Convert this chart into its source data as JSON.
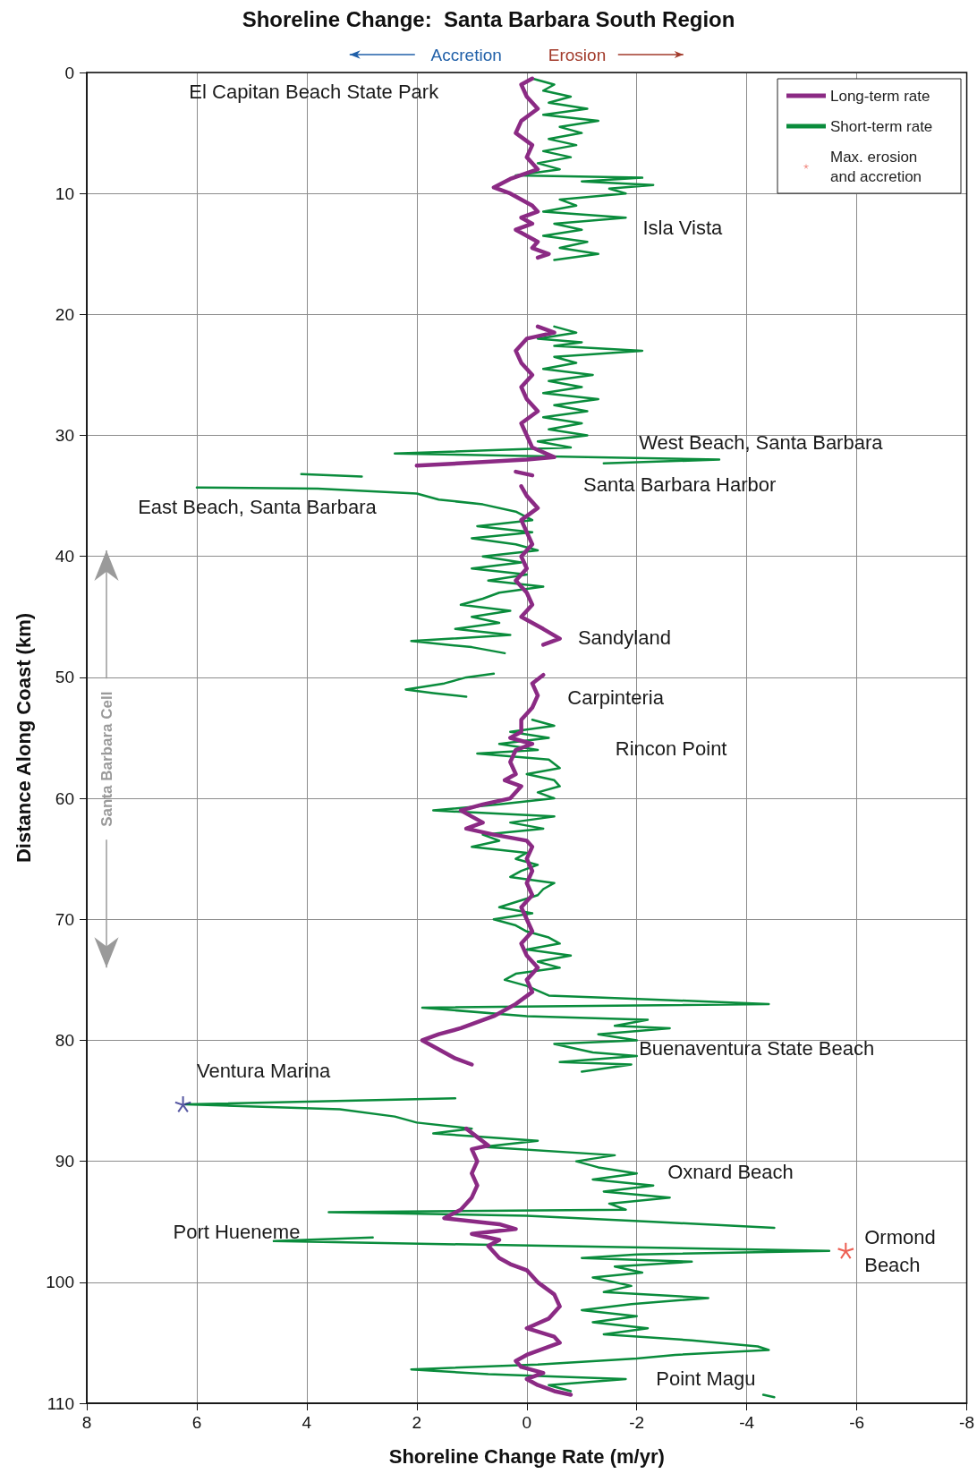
{
  "chart_data": {
    "type": "line",
    "title": "Shoreline Change:  Santa Barbara South Region",
    "xlabel": "Shoreline Change Rate (m/yr)",
    "ylabel": "Distance Along Coast (km)",
    "xlim": [
      8,
      -8
    ],
    "xticks": [
      8,
      6,
      4,
      2,
      0,
      -2,
      -4,
      -6,
      -8
    ],
    "ylim": [
      110,
      0
    ],
    "yticks": [
      0,
      10,
      20,
      30,
      40,
      50,
      60,
      70,
      80,
      90,
      100,
      110
    ],
    "grid": true,
    "legend": "top right",
    "marker": "none",
    "series": [
      {
        "name": "Long-term rate",
        "color": "#8b2a84",
        "x": [
          -0.1,
          0.1,
          0.0,
          -0.2,
          0.1,
          0.2,
          -0.1,
          0.0,
          -0.2,
          0.3,
          0.6,
          0.3,
          0.1,
          -0.1,
          -0.2,
          0.1,
          -0.1,
          0.2,
          0.0,
          -0.2,
          -0.1,
          -0.4,
          -0.2,
          null,
          -0.2,
          -0.5,
          0.0,
          0.2,
          0.1,
          -0.1,
          0.1,
          0.0,
          -0.2,
          0.1,
          0.0,
          -0.1,
          -0.5,
          0.0,
          2.0,
          null,
          0.2,
          -0.1,
          null,
          0.1,
          0.0,
          -0.2,
          0.1,
          0.0,
          -0.1,
          0.1,
          0.0,
          0.2,
          0.0,
          -0.1,
          0.1,
          -0.3,
          -0.6,
          -0.3,
          null,
          -0.3,
          -0.1,
          -0.2,
          -0.1,
          0.1,
          0.1,
          0.3,
          -0.1,
          0.2,
          0.3,
          0.2,
          0.4,
          0.1,
          0.3,
          0.8,
          1.2,
          0.8,
          1.1,
          0.6,
          0.0,
          -0.1,
          0.0,
          -0.1,
          0.0,
          -0.1,
          0.1,
          0.0,
          -0.1,
          0.1,
          0.0,
          -0.2,
          0.0,
          -0.1,
          0.2,
          0.6,
          1.2,
          1.6,
          1.9,
          1.7,
          1.5,
          1.3,
          1.0,
          null,
          1.1,
          0.9,
          0.7,
          1.0,
          0.9,
          1.0,
          0.9,
          1.0,
          1.2,
          1.5,
          0.5,
          0.2,
          1.0,
          0.5,
          0.7,
          0.6,
          0.5,
          0.3,
          0.0,
          -0.2,
          -0.5,
          -0.6,
          -0.4,
          0.0,
          -0.5,
          -0.6,
          -0.3,
          0.0,
          0.2,
          0.1,
          -0.3,
          0.0,
          -0.2,
          -0.5,
          -0.8
        ],
        "values": [
          0.5,
          1,
          2,
          3,
          4,
          5,
          6,
          7,
          8,
          8.8,
          9.5,
          10,
          10.5,
          11,
          11.5,
          12,
          12.5,
          13,
          13.5,
          14,
          14.5,
          15,
          15.3,
          null,
          21,
          21.5,
          22,
          23,
          24,
          25,
          26,
          27,
          28,
          29,
          30,
          31,
          31.8,
          32,
          32.5,
          null,
          33,
          33.3,
          null,
          34.2,
          35,
          36,
          37,
          38,
          39,
          40,
          41,
          42,
          43,
          44,
          45,
          46,
          46.8,
          47.3,
          null,
          49.8,
          50.5,
          51.5,
          52.5,
          53.5,
          54.5,
          55,
          55.5,
          56,
          57,
          58,
          58.5,
          59,
          60,
          60.5,
          61,
          62,
          62.5,
          63,
          63.5,
          64,
          65,
          66,
          67,
          68,
          69,
          70,
          71,
          72,
          73,
          74,
          75,
          76,
          77,
          78,
          79,
          79.5,
          80,
          80.5,
          81,
          81.5,
          82,
          null,
          87.3,
          88,
          88.7,
          89,
          90,
          91,
          92,
          93,
          94,
          94.7,
          95.2,
          95.6,
          96,
          96.5,
          97,
          97.5,
          98,
          98.5,
          99,
          100,
          101,
          102,
          103,
          103.8,
          104.5,
          105,
          105.5,
          106,
          106.5,
          107,
          107.5,
          108,
          108.5,
          109,
          109.3
        ]
      },
      {
        "name": "Short-term rate",
        "color": "#0a8c3c",
        "x": [
          -0.1,
          -0.5,
          -0.3,
          -0.8,
          -0.4,
          -1.1,
          -0.3,
          -1.3,
          -0.6,
          -1.0,
          -0.4,
          -0.9,
          -0.3,
          -0.8,
          -0.2,
          -0.6,
          0.2,
          -2.1,
          -1.0,
          -2.3,
          -1.5,
          -1.8,
          -0.6,
          -0.9,
          -0.3,
          -1.8,
          -0.5,
          -1.0,
          -0.3,
          -1.1,
          -0.6,
          -1.3,
          -0.5,
          null,
          -0.5,
          -0.9,
          -0.2,
          -1.0,
          -0.5,
          -2.1,
          -0.5,
          -0.9,
          -0.3,
          -1.2,
          -0.4,
          -1.0,
          -0.3,
          -1.3,
          -0.5,
          -1.1,
          -0.3,
          -1.0,
          -0.4,
          -1.1,
          -0.2,
          -0.8,
          2.4,
          -3.5,
          -1.4,
          null,
          4.1,
          3.0,
          null,
          6.0,
          3.8,
          2.0,
          1.6,
          0.8,
          0.2,
          -0.1,
          0.9,
          -0.1,
          1.0,
          0.2,
          -0.2,
          0.8,
          0.1,
          1.0,
          0.0,
          0.7,
          -0.3,
          0.5,
          0.8,
          1.2,
          0.3,
          1.0,
          0.5,
          1.3,
          0.3,
          2.1,
          1.0,
          0.4,
          null,
          0.6,
          1.1,
          1.5,
          2.2,
          1.7,
          1.1,
          null,
          -0.1,
          -0.5,
          0.3,
          -0.4,
          0.5,
          -0.2,
          0.9,
          -0.4,
          -0.6,
          0.0,
          -0.5,
          -0.6,
          -0.2,
          -0.5,
          0.5,
          1.7,
          -0.5,
          0.3,
          -0.3,
          0.8,
          0.5,
          1.0,
          0.0,
          0.2,
          -0.2,
          0.1,
          0.3,
          -0.5,
          -0.3,
          -0.2,
          0.5,
          -0.1,
          0.6,
          0.2,
          0.0,
          -0.4,
          -0.6,
          0.0,
          -0.8,
          -0.2,
          -0.6,
          0.2,
          0.4,
          0.0,
          -0.4,
          -1.6,
          -4.4,
          1.9,
          0.0,
          -2.2,
          -1.6,
          -2.6,
          -1.3,
          -2.0,
          -0.5,
          -1.2,
          -2.0,
          -0.6,
          -1.9,
          -1.0,
          null,
          1.3,
          6.2,
          3.4,
          2.4,
          2.0,
          1.0,
          1.7,
          -0.2,
          0.8,
          -1.6,
          -0.9,
          -1.3,
          -2.0,
          -1.2,
          -2.3,
          -1.4,
          -2.6,
          -1.5,
          -1.8,
          3.6,
          0.0,
          -2.3,
          -4.5,
          null,
          2.8,
          4.6,
          -5.5,
          -2.0,
          -1.0,
          -3.0,
          -1.6,
          -2.1,
          -1.2,
          -1.9,
          -1.4,
          -3.3,
          -1.9,
          -1.0,
          -2.0,
          -1.2,
          -2.2,
          -1.4,
          -3.0,
          -4.2,
          -4.4,
          -2.7,
          -2.0,
          -0.2,
          2.1,
          0.7,
          -1.8,
          -0.4,
          -0.8,
          null,
          -4.3,
          -4.5
        ],
        "values": [
          0.5,
          1,
          1.5,
          2,
          2.5,
          3,
          3.5,
          4,
          4.5,
          5,
          5.5,
          6,
          6.5,
          7,
          7.5,
          8,
          8.5,
          8.7,
          9,
          9.3,
          9.6,
          10,
          10.5,
          11,
          11.5,
          12,
          12.5,
          13,
          13.5,
          14,
          14.5,
          15,
          15.5,
          null,
          21,
          21.5,
          22,
          22.3,
          22.6,
          23,
          23.5,
          24,
          24.5,
          25,
          25.5,
          26,
          26.5,
          27,
          27.5,
          28,
          28.5,
          29,
          29.5,
          30,
          30.5,
          31,
          31.5,
          32,
          32.3,
          null,
          33.2,
          33.4,
          null,
          34.3,
          34.4,
          34.8,
          35.3,
          35.7,
          36.3,
          37,
          37.5,
          38,
          38.5,
          39,
          39.5,
          40,
          40.5,
          41,
          41.5,
          42,
          42.5,
          43,
          43.5,
          44,
          44.5,
          45,
          45.5,
          46,
          46.5,
          47,
          47.5,
          48,
          null,
          49.7,
          50,
          50.5,
          51,
          51.3,
          51.6,
          null,
          53.5,
          54,
          54.5,
          55,
          55.5,
          56,
          56.3,
          56.8,
          57.5,
          58,
          58.5,
          59,
          59.5,
          60,
          60.5,
          61,
          61.5,
          62,
          62.5,
          63,
          63.5,
          64,
          64.5,
          65,
          65.5,
          66,
          66.5,
          67,
          67.5,
          68,
          69,
          69.5,
          70,
          70.5,
          71,
          71.5,
          72,
          72.5,
          73,
          73.5,
          74,
          74.5,
          75,
          75.5,
          76.3,
          76.5,
          77,
          77.3,
          78,
          78.3,
          78.8,
          79,
          79.5,
          80,
          80.3,
          81,
          81.3,
          81.8,
          82,
          82.6,
          null,
          84.8,
          85.3,
          85.7,
          86.3,
          86.8,
          87.3,
          87.7,
          88.3,
          88.8,
          89.5,
          90,
          90.5,
          91,
          91.5,
          92,
          92.5,
          93,
          93.5,
          94,
          94.2,
          94.5,
          95,
          95.5,
          null,
          96.3,
          96.6,
          97.4,
          97.7,
          98,
          98.3,
          98.7,
          99.2,
          99.6,
          100.3,
          100.8,
          101.3,
          101.8,
          102.3,
          102.8,
          103.3,
          103.8,
          104.3,
          104.8,
          105.3,
          105.6,
          106,
          106.3,
          106.8,
          107.2,
          107.6,
          108,
          108.5,
          109,
          null,
          109.3,
          109.5
        ]
      },
      {
        "name": "Max. erosion and accretion",
        "type": "scatter",
        "marker": "star",
        "colors": [
          "#e8392a",
          "#2e2f8c"
        ],
        "x": [
          -5.8,
          6.25
        ],
        "values": [
          97.4,
          85.3
        ]
      }
    ],
    "annotations": [
      "Accretion",
      "Erosion",
      "Santa Barbara Cell",
      "El Capitan Beach State Park",
      "Isla Vista",
      "West Beach, Santa Barbara",
      "Santa Barbara Harbor",
      "East Beach, Santa Barbara",
      "Sandyland",
      "Carpinteria",
      "Rincon Point",
      "Buenaventura State Beach",
      "Ventura Marina",
      "Oxnard Beach",
      "Port Hueneme",
      "Ormond Beach",
      "Point Magu"
    ]
  }
}
